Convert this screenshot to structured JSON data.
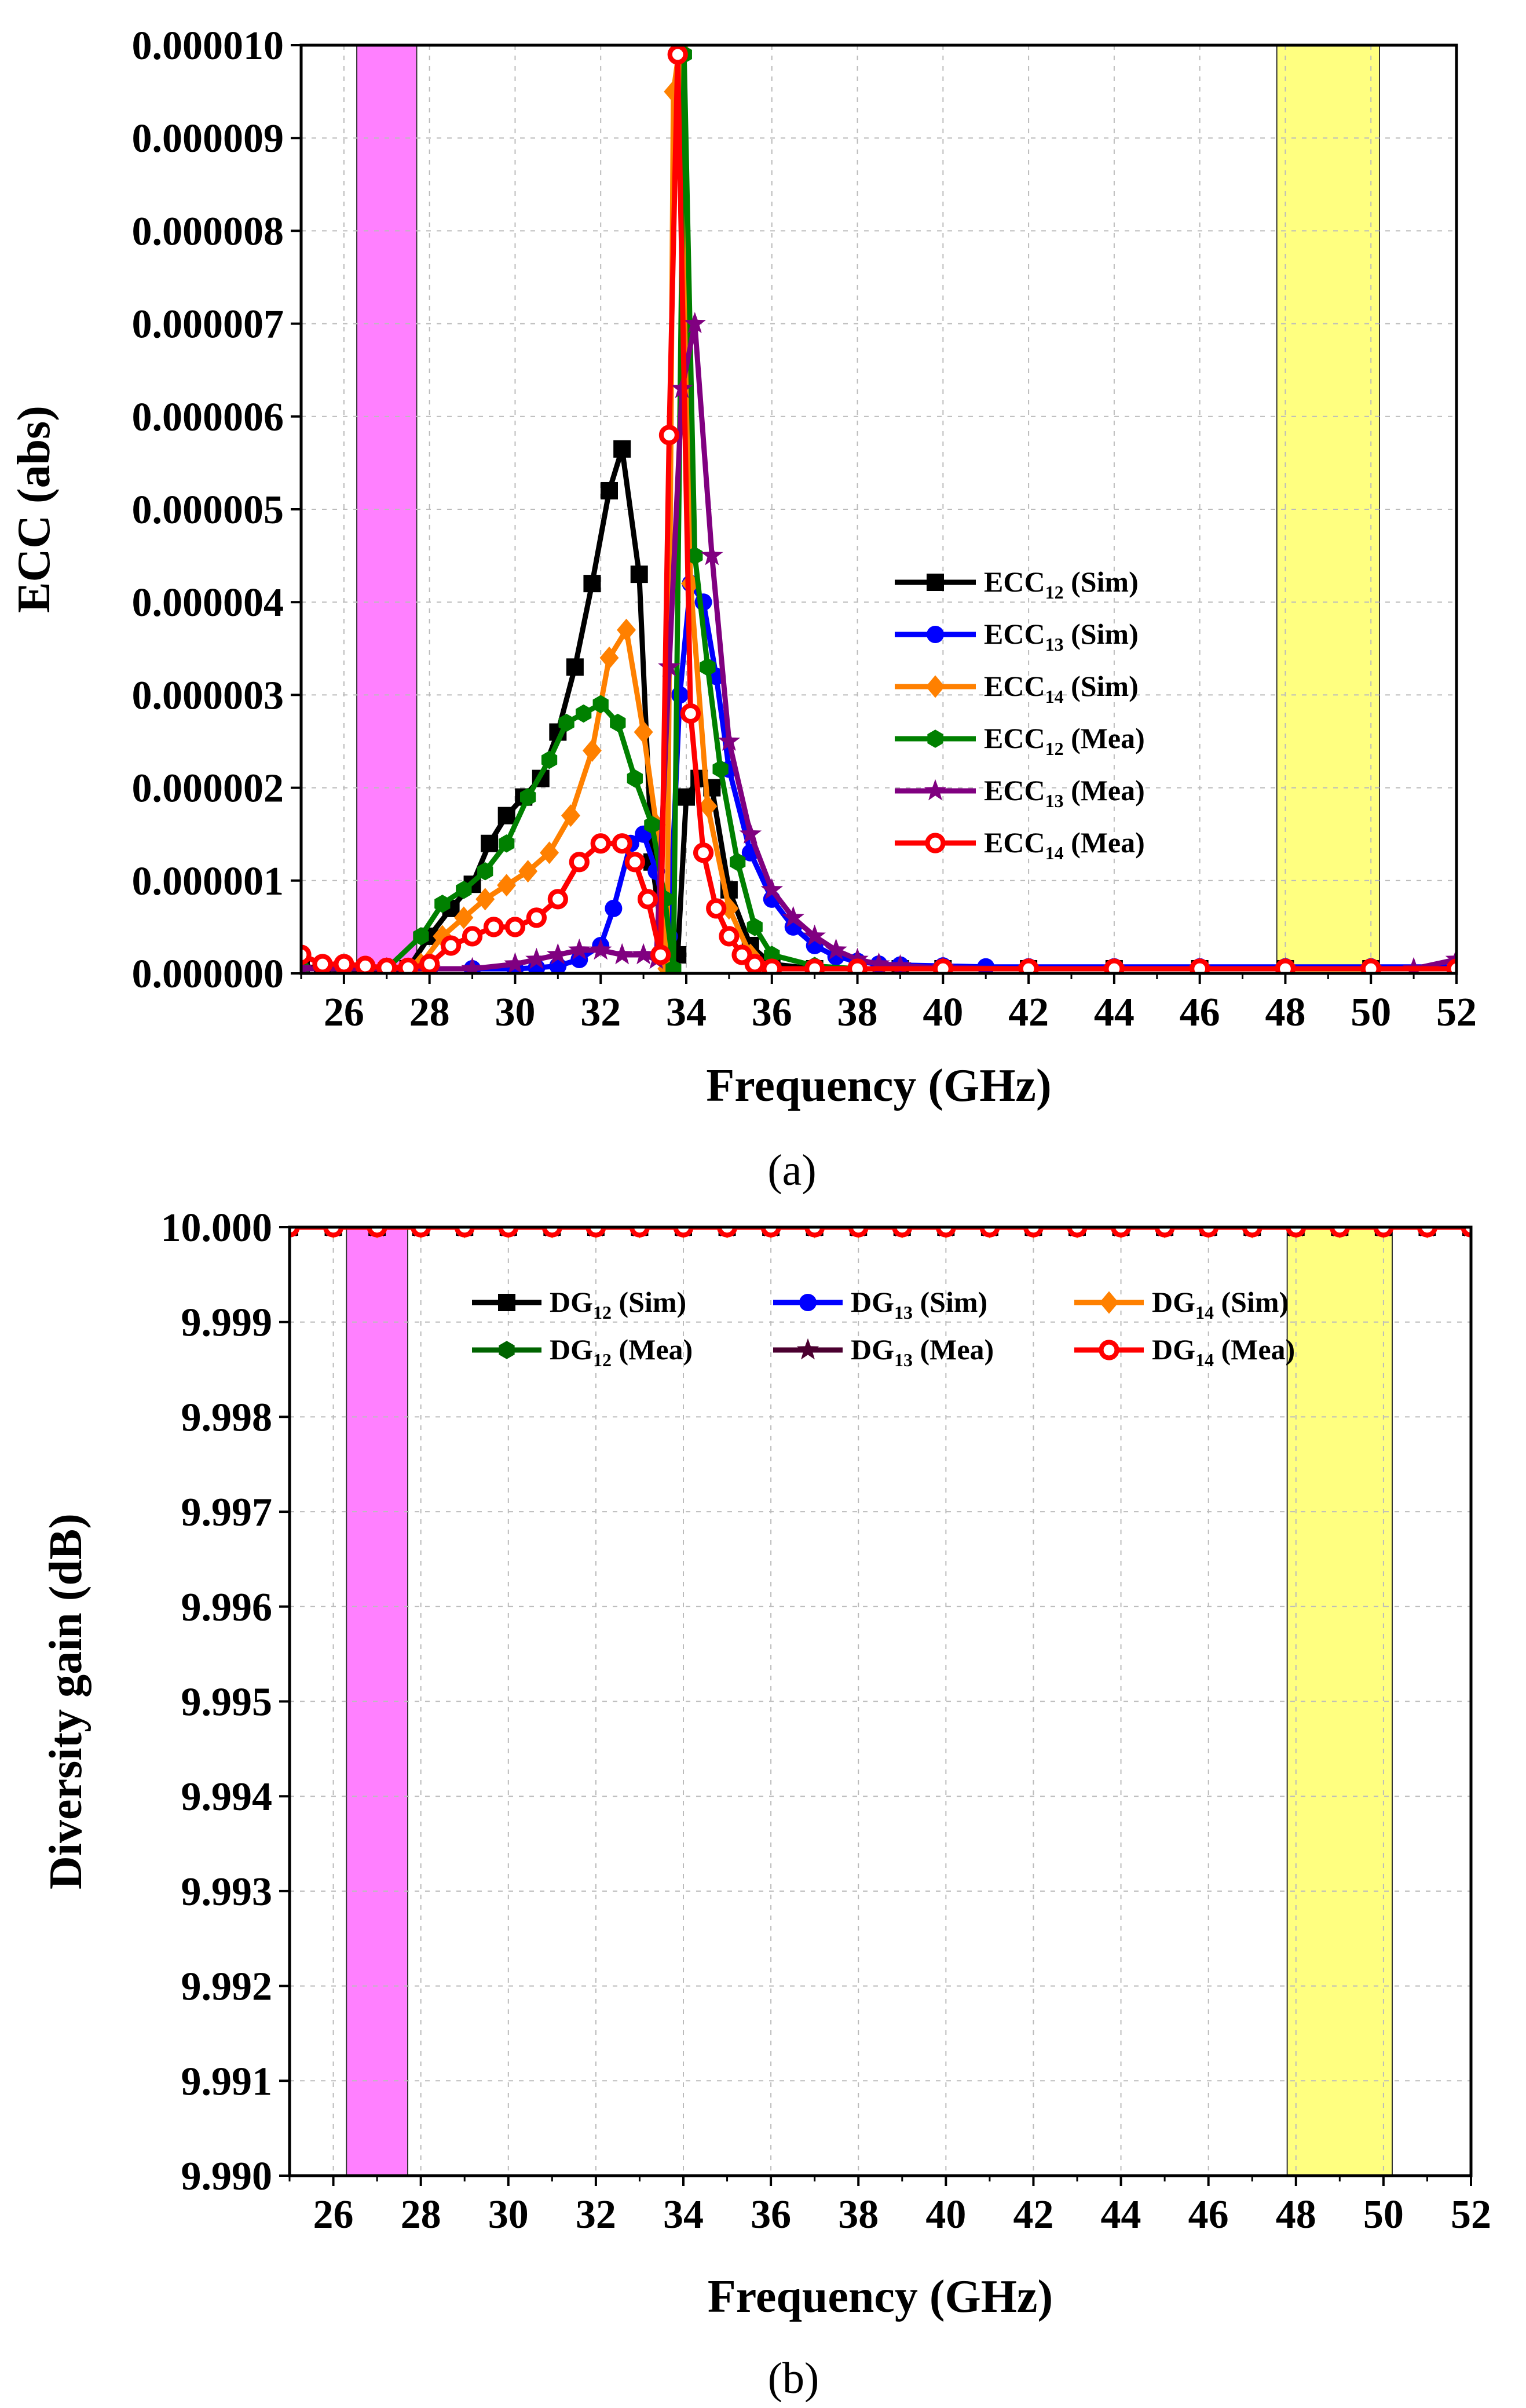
{
  "chart_data": [
    {
      "type": "line",
      "caption": "(a)",
      "xlabel": "Frequency (GHz)",
      "ylabel": "ECC (abs)",
      "xlim": [
        25,
        52
      ],
      "ylim": [
        0,
        1e-05
      ],
      "xticks": [
        26,
        28,
        30,
        32,
        34,
        36,
        38,
        40,
        42,
        44,
        46,
        48,
        50,
        52
      ],
      "xtick_labels": [
        "26",
        "28",
        "30",
        "32",
        "34",
        "36",
        "38",
        "40",
        "42",
        "44",
        "46",
        "48",
        "50",
        "52"
      ],
      "yticks": [
        0,
        1e-06,
        2e-06,
        3e-06,
        4e-06,
        5e-06,
        6e-06,
        7e-06,
        8e-06,
        9e-06,
        1e-05
      ],
      "ytick_labels": [
        "0.000000",
        "0.000001",
        "0.000002",
        "0.000003",
        "0.000004",
        "0.000005",
        "0.000006",
        "0.000007",
        "0.000008",
        "0.000009",
        "0.000010"
      ],
      "grid": true,
      "legend_position": "right",
      "bands": [
        {
          "from": 26.3,
          "to": 27.7,
          "color": "#ff80ff"
        },
        {
          "from": 47.8,
          "to": 50.2,
          "color": "#ffff80"
        }
      ],
      "series": [
        {
          "name": "ECC12 (Sim)",
          "label_main": "ECC",
          "label_sub": "12",
          "label_tail": " (Sim)",
          "color": "#000000",
          "marker": "square",
          "x": [
            25,
            25.5,
            26,
            26.5,
            27,
            27.5,
            28,
            28.5,
            29,
            29.4,
            29.8,
            30.2,
            30.6,
            31,
            31.4,
            31.8,
            32.2,
            32.5,
            32.9,
            33.2,
            33.5,
            33.8,
            34.0,
            34.3,
            34.6,
            35,
            35.5,
            36,
            37,
            38,
            39,
            40,
            42,
            44,
            46,
            48,
            50,
            52
          ],
          "y": [
            8e-08,
            5e-08,
            4e-08,
            3e-08,
            3e-08,
            5e-08,
            4e-07,
            7e-07,
            9.6e-07,
            1.4e-06,
            1.7e-06,
            1.9e-06,
            2.1e-06,
            2.6e-06,
            3.3e-06,
            4.2e-06,
            5.2e-06,
            5.65e-06,
            4.3e-06,
            1.2e-06,
            2e-07,
            2e-07,
            1.9e-06,
            2.1e-06,
            2e-06,
            9e-07,
            3e-07,
            1e-07,
            5e-08,
            5e-08,
            5e-08,
            5e-08,
            5e-08,
            5e-08,
            5e-08,
            5e-08,
            5e-08,
            5e-08
          ]
        },
        {
          "name": "ECC13 (Sim)",
          "label_main": "ECC",
          "label_sub": "13",
          "label_tail": " (Sim)",
          "color": "#0000ff",
          "marker": "circle",
          "x": [
            25,
            26,
            27,
            28,
            29,
            30,
            30.5,
            31,
            31.5,
            32,
            32.3,
            32.7,
            33,
            33.3,
            33.6,
            33.85,
            34.1,
            34.4,
            34.7,
            35,
            35.5,
            36,
            36.5,
            37,
            37.5,
            38,
            38.5,
            39,
            40,
            41,
            42,
            44,
            46,
            48,
            50,
            52
          ],
          "y": [
            5e-08,
            5e-08,
            5e-08,
            5e-08,
            5e-08,
            5e-08,
            6e-08,
            8e-08,
            1.5e-07,
            3e-07,
            7e-07,
            1.4e-06,
            1.5e-06,
            1.1e-06,
            4e-07,
            3e-06,
            4.2e-06,
            4e-06,
            3.2e-06,
            2.2e-06,
            1.3e-06,
            8e-07,
            5e-07,
            3e-07,
            1.8e-07,
            1.3e-07,
            1e-07,
            9e-08,
            8e-08,
            7e-08,
            7e-08,
            7e-08,
            7e-08,
            7e-08,
            7e-08,
            7e-08
          ]
        },
        {
          "name": "ECC14 (Sim)",
          "label_main": "ECC",
          "label_sub": "14",
          "label_tail": " (Sim)",
          "color": "#ff8000",
          "marker": "diamond",
          "x": [
            25,
            26,
            27,
            27.8,
            28.3,
            28.8,
            29.3,
            29.8,
            30.3,
            30.8,
            31.3,
            31.8,
            32.2,
            32.6,
            33.0,
            33.3,
            33.55,
            33.7,
            33.85,
            34.1,
            34.5,
            35,
            35.5,
            36,
            37,
            38,
            40,
            42,
            44,
            46,
            48,
            50,
            52
          ],
          "y": [
            5e-08,
            5e-08,
            5e-08,
            1e-07,
            4e-07,
            6e-07,
            8e-07,
            9.5e-07,
            1.1e-06,
            1.3e-06,
            1.7e-06,
            2.4e-06,
            3.4e-06,
            3.7e-06,
            2.6e-06,
            1.6e-06,
            5e-08,
            9.5e-06,
            1e-05,
            4.2e-06,
            1.8e-06,
            7e-07,
            2e-07,
            5e-08,
            5e-08,
            5e-08,
            5e-08,
            5e-08,
            5e-08,
            5e-08,
            5e-08,
            5e-08,
            5e-08
          ]
        },
        {
          "name": "ECC12 (Mea)",
          "label_main": "ECC",
          "label_sub": "12",
          "label_tail": " (Mea)",
          "color": "#008000",
          "marker": "hexagon",
          "x": [
            25,
            26,
            27,
            27.8,
            28.3,
            28.8,
            29.3,
            29.8,
            30.3,
            30.8,
            31.2,
            31.6,
            32.0,
            32.4,
            32.8,
            33.2,
            33.5,
            33.7,
            33.95,
            34.2,
            34.5,
            34.8,
            35.2,
            35.6,
            36,
            37,
            38,
            40,
            42,
            44,
            46,
            48,
            50,
            52
          ],
          "y": [
            5e-08,
            5e-08,
            5e-08,
            4e-07,
            7.5e-07,
            9e-07,
            1.1e-06,
            1.4e-06,
            1.9e-06,
            2.3e-06,
            2.7e-06,
            2.8e-06,
            2.9e-06,
            2.7e-06,
            2.1e-06,
            1.6e-06,
            8e-07,
            5e-08,
            9.9e-06,
            4.5e-06,
            3.3e-06,
            2.2e-06,
            1.2e-06,
            5e-07,
            2e-07,
            8e-08,
            5e-08,
            5e-08,
            5e-08,
            5e-08,
            5e-08,
            5e-08,
            5e-08,
            5e-08
          ]
        },
        {
          "name": "ECC13 (Mea)",
          "label_main": "ECC",
          "label_sub": "13",
          "label_tail": " (Mea)",
          "color": "#800080",
          "marker": "star",
          "x": [
            25,
            26,
            27,
            28,
            29,
            30,
            30.5,
            31,
            31.5,
            32,
            32.5,
            33,
            33.3,
            33.6,
            33.9,
            34.2,
            34.6,
            35,
            35.5,
            36,
            36.5,
            37,
            37.5,
            38,
            38.5,
            39,
            40,
            42,
            44,
            46,
            48,
            50,
            51,
            52
          ],
          "y": [
            5e-08,
            5e-08,
            5e-08,
            5e-08,
            5e-08,
            1e-07,
            1.5e-07,
            2e-07,
            2.5e-07,
            2.5e-07,
            2e-07,
            2e-07,
            1.5e-07,
            3.3e-06,
            6.3e-06,
            7e-06,
            4.5e-06,
            2.5e-06,
            1.5e-06,
            9e-07,
            6e-07,
            4e-07,
            2.5e-07,
            1.5e-07,
            1e-07,
            8e-08,
            6e-08,
            5e-08,
            5e-08,
            5e-08,
            5e-08,
            5e-08,
            5e-08,
            1.5e-07
          ]
        },
        {
          "name": "ECC14 (Mea)",
          "label_main": "ECC",
          "label_sub": "14",
          "label_tail": " (Mea)",
          "color": "#ff0000",
          "marker": "circle-open",
          "x": [
            25,
            25.5,
            26,
            26.5,
            27,
            27.5,
            28,
            28.5,
            29,
            29.5,
            30,
            30.5,
            31,
            31.5,
            32,
            32.5,
            32.8,
            33.1,
            33.4,
            33.6,
            33.8,
            34.1,
            34.4,
            34.7,
            35,
            35.3,
            35.6,
            36,
            37,
            38,
            40,
            42,
            44,
            46,
            48,
            50,
            52
          ],
          "y": [
            2e-07,
            1e-07,
            1e-07,
            8e-08,
            6e-08,
            6e-08,
            1e-07,
            3e-07,
            4e-07,
            5e-07,
            5e-07,
            6e-07,
            8e-07,
            1.2e-06,
            1.4e-06,
            1.4e-06,
            1.2e-06,
            8e-07,
            2e-07,
            5.8e-06,
            9.9e-06,
            2.8e-06,
            1.3e-06,
            7e-07,
            4e-07,
            2e-07,
            1e-07,
            5e-08,
            5e-08,
            5e-08,
            5e-08,
            5e-08,
            5e-08,
            5e-08,
            5e-08,
            5e-08,
            5e-08
          ]
        }
      ]
    },
    {
      "type": "line",
      "caption": "(b)",
      "xlabel": "Frequency (GHz)",
      "ylabel": "Diversity gain (dB)",
      "xlim": [
        25,
        52
      ],
      "ylim": [
        9.99,
        10
      ],
      "xticks": [
        26,
        28,
        30,
        32,
        34,
        36,
        38,
        40,
        42,
        44,
        46,
        48,
        50,
        52
      ],
      "xtick_labels": [
        "26",
        "28",
        "30",
        "32",
        "34",
        "36",
        "38",
        "40",
        "42",
        "44",
        "46",
        "48",
        "50",
        "52"
      ],
      "yticks": [
        9.99,
        9.991,
        9.992,
        9.993,
        9.994,
        9.995,
        9.996,
        9.997,
        9.998,
        9.999,
        10
      ],
      "ytick_labels": [
        "9.990",
        "9.991",
        "9.992",
        "9.993",
        "9.994",
        "9.995",
        "9.996",
        "9.997",
        "9.998",
        "9.999",
        "10.000"
      ],
      "grid": true,
      "legend_position": "top",
      "bands": [
        {
          "from": 26.3,
          "to": 27.7,
          "color": "#ff80ff"
        },
        {
          "from": 47.8,
          "to": 50.2,
          "color": "#ffff80"
        }
      ],
      "series": [
        {
          "name": "DG12 (Sim)",
          "label_main": "DG",
          "label_sub": "12",
          "label_tail": " (Sim)",
          "color": "#000000",
          "marker": "square",
          "x": [
            25,
            26,
            27,
            28,
            29,
            30,
            31,
            32,
            33,
            34,
            35,
            36,
            37,
            38,
            39,
            40,
            41,
            42,
            43,
            44,
            45,
            46,
            47,
            48,
            49,
            50,
            51,
            52
          ],
          "y": [
            10,
            10,
            10,
            10,
            10,
            10,
            10,
            10,
            10,
            10,
            10,
            10,
            10,
            10,
            10,
            10,
            10,
            10,
            10,
            10,
            10,
            10,
            10,
            10,
            10,
            10,
            10,
            10
          ]
        },
        {
          "name": "DG13 (Sim)",
          "label_main": "DG",
          "label_sub": "13",
          "label_tail": " (Sim)",
          "color": "#0000ff",
          "marker": "circle",
          "x": [
            25,
            26,
            27,
            28,
            29,
            30,
            31,
            32,
            33,
            34,
            35,
            36,
            37,
            38,
            39,
            40,
            41,
            42,
            43,
            44,
            45,
            46,
            47,
            48,
            49,
            50,
            51,
            52
          ],
          "y": [
            10,
            10,
            10,
            10,
            10,
            10,
            10,
            10,
            10,
            10,
            10,
            10,
            10,
            10,
            10,
            10,
            10,
            10,
            10,
            10,
            10,
            10,
            10,
            10,
            10,
            10,
            10,
            10
          ]
        },
        {
          "name": "DG14 (Sim)",
          "label_main": "DG",
          "label_sub": "14",
          "label_tail": " (Sim)",
          "color": "#ff8000",
          "marker": "diamond",
          "x": [
            25,
            26,
            27,
            28,
            29,
            30,
            31,
            32,
            33,
            34,
            35,
            36,
            37,
            38,
            39,
            40,
            41,
            42,
            43,
            44,
            45,
            46,
            47,
            48,
            49,
            50,
            51,
            52
          ],
          "y": [
            10,
            10,
            10,
            10,
            10,
            10,
            10,
            10,
            10,
            10,
            10,
            10,
            10,
            10,
            10,
            10,
            10,
            10,
            10,
            10,
            10,
            10,
            10,
            10,
            10,
            10,
            10,
            10
          ]
        },
        {
          "name": "DG12 (Mea)",
          "label_main": "DG",
          "label_sub": "12",
          "label_tail": " (Mea)",
          "color": "#006400",
          "marker": "hexagon",
          "x": [
            25,
            26,
            27,
            28,
            29,
            30,
            31,
            32,
            33,
            34,
            35,
            36,
            37,
            38,
            39,
            40,
            41,
            42,
            43,
            44,
            45,
            46,
            47,
            48,
            49,
            50,
            51,
            52
          ],
          "y": [
            10,
            10,
            10,
            10,
            10,
            10,
            10,
            10,
            10,
            10,
            10,
            10,
            10,
            10,
            10,
            10,
            10,
            10,
            10,
            10,
            10,
            10,
            10,
            10,
            10,
            10,
            10,
            10
          ]
        },
        {
          "name": "DG13 (Mea)",
          "label_main": "DG",
          "label_sub": "13",
          "label_tail": " (Mea)",
          "color": "#4b0030",
          "marker": "star",
          "x": [
            25,
            26,
            27,
            28,
            29,
            30,
            31,
            32,
            33,
            34,
            35,
            36,
            37,
            38,
            39,
            40,
            41,
            42,
            43,
            44,
            45,
            46,
            47,
            48,
            49,
            50,
            51,
            52
          ],
          "y": [
            10,
            10,
            10,
            10,
            10,
            10,
            10,
            10,
            10,
            10,
            10,
            10,
            10,
            10,
            10,
            10,
            10,
            10,
            10,
            10,
            10,
            10,
            10,
            10,
            10,
            10,
            10,
            10
          ]
        },
        {
          "name": "DG14 (Mea)",
          "label_main": "DG",
          "label_sub": "14",
          "label_tail": " (Mea)",
          "color": "#ff0000",
          "marker": "circle-open",
          "x": [
            25,
            26,
            27,
            28,
            29,
            30,
            31,
            32,
            33,
            34,
            35,
            36,
            37,
            38,
            39,
            40,
            41,
            42,
            43,
            44,
            45,
            46,
            47,
            48,
            49,
            50,
            51,
            52
          ],
          "y": [
            10,
            10,
            10,
            10,
            10,
            10,
            10,
            10,
            10,
            10,
            10,
            10,
            10,
            10,
            10,
            10,
            10,
            10,
            10,
            10,
            10,
            10,
            10,
            10,
            10,
            10,
            10,
            10
          ]
        }
      ]
    }
  ]
}
